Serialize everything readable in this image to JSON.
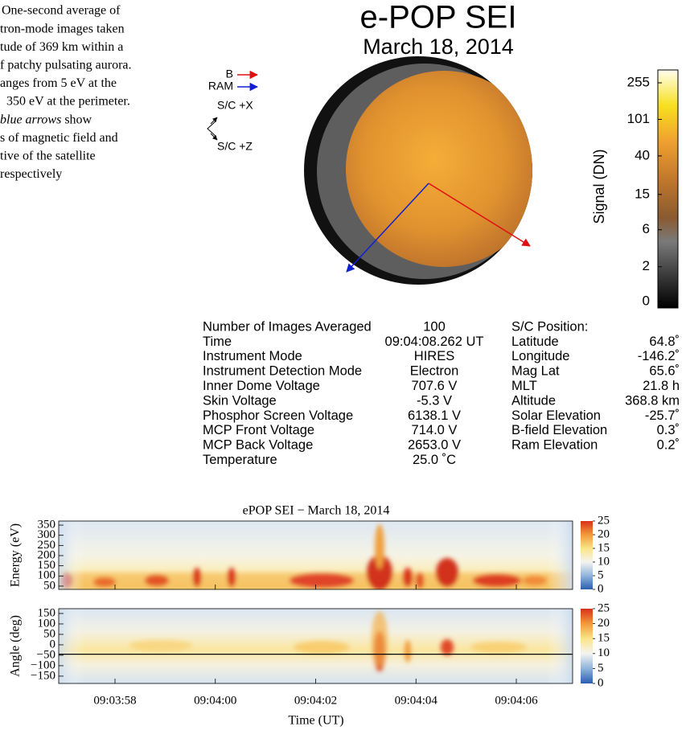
{
  "caption": {
    "lines": [
      "One-second average of",
      "tron-mode images taken",
      "tude of 369 km within a",
      "f patchy pulsating aurora.",
      "anges from 5 eV at the",
      "350 eV at the perimeter.",
      [
        "blue arrows",
        " show"
      ],
      "s of magnetic field and",
      "tive of the satellite",
      "respectively"
    ]
  },
  "image_panel": {
    "title": "e-POP SEI",
    "date": "March 18, 2014",
    "legend": [
      "B",
      "RAM"
    ],
    "axes": [
      "S/C +X",
      "S/C +Z"
    ],
    "colorbar": {
      "label": "Signal (DN)",
      "ticks": [
        0,
        2,
        6,
        15,
        40,
        101,
        255
      ]
    }
  },
  "parameters": {
    "rows": [
      [
        "Number of Images Averaged",
        "100"
      ],
      [
        "Time",
        "09:04:08.262 UT"
      ],
      [
        "Instrument Mode",
        "HIRES"
      ],
      [
        "Instrument Detection Mode",
        "Electron"
      ],
      [
        "Inner Dome Voltage",
        "707.6 V"
      ],
      [
        "Skin Voltage",
        "-5.3 V"
      ],
      [
        "Phosphor Screen Voltage",
        "6138.1 V"
      ],
      [
        "MCP Front Voltage",
        "714.0 V"
      ],
      [
        "MCP Back Voltage",
        "2653.0 V"
      ],
      [
        "Temperature",
        "25.0 ˚C"
      ]
    ]
  },
  "position": {
    "title": "S/C Position:",
    "rows": [
      [
        "Latitude",
        "64.8˚"
      ],
      [
        "Longitude",
        "-146.2˚"
      ],
      [
        "Mag Lat",
        "65.6˚"
      ],
      [
        "MLT",
        "21.8 h"
      ],
      [
        "Altitude",
        "368.8 km"
      ],
      [
        "Solar Elevation",
        "-25.7˚"
      ],
      [
        "B-field Elevation",
        "0.3˚"
      ],
      [
        "Ram Elevation",
        "0.2˚"
      ]
    ]
  },
  "spectrogram": {
    "title": "ePOP SEI − March 18, 2014",
    "xlabel": "Time (UT)",
    "xticks": [
      "09:03:58",
      "09:04:00",
      "09:04:02",
      "09:04:04",
      "09:04:06"
    ],
    "colorbar_ticks": [
      0,
      5,
      10,
      15,
      20,
      25
    ],
    "colorbar_lim": [
      0,
      25
    ],
    "panels": [
      {
        "ylabel": "Energy (eV)",
        "ylim": [
          34,
          370
        ],
        "yticks": [
          50,
          100,
          150,
          200,
          250,
          300,
          350
        ]
      },
      {
        "ylabel": "Angle (deg)",
        "ylim": [
          -185,
          173
        ],
        "yticks": [
          {
            "value": -150,
            "label": "−150"
          },
          {
            "value": -100,
            "label": "−100"
          },
          {
            "value": -50,
            "label": "−50"
          },
          0,
          50,
          100,
          150
        ],
        "reference_line": -45
      }
    ]
  }
}
